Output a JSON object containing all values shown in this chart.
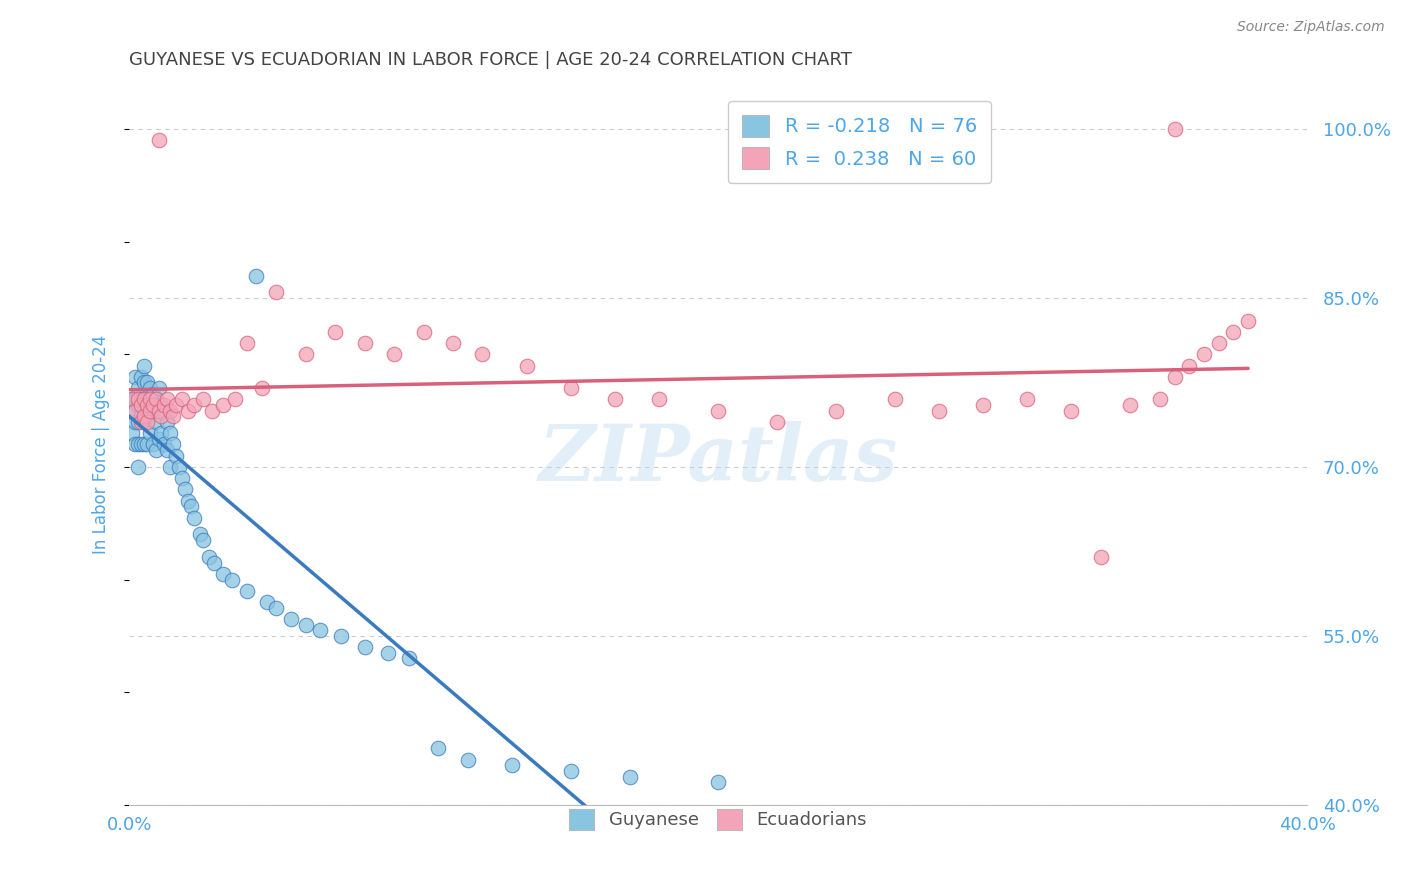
{
  "title": "GUYANESE VS ECUADORIAN IN LABOR FORCE | AGE 20-24 CORRELATION CHART",
  "source": "Source: ZipAtlas.com",
  "ylabel": "In Labor Force | Age 20-24",
  "xlim": [
    0.0,
    0.4
  ],
  "ylim": [
    0.4,
    1.04
  ],
  "xtick_positions": [
    0.0,
    0.05,
    0.1,
    0.15,
    0.2,
    0.25,
    0.3,
    0.35,
    0.4
  ],
  "xtick_labels": [
    "0.0%",
    "",
    "",
    "",
    "",
    "",
    "",
    "",
    "40.0%"
  ],
  "ytick_positions": [
    0.4,
    0.55,
    0.7,
    0.85,
    1.0
  ],
  "ytick_labels": [
    "40.0%",
    "55.0%",
    "70.0%",
    "85.0%",
    "100.0%"
  ],
  "watermark": "ZIPatlas",
  "legend_r_blue": "-0.218",
  "legend_n_blue": "76",
  "legend_r_pink": "0.238",
  "legend_n_pink": "60",
  "blue_color": "#89c4e1",
  "pink_color": "#f4a4b8",
  "blue_line_color": "#3a7bbf",
  "pink_line_color": "#d9607a",
  "title_color": "#444444",
  "axis_label_color": "#4da6e8",
  "grid_color": "#cccccc",
  "blue_scatter_x": [
    0.001,
    0.001,
    0.001,
    0.002,
    0.002,
    0.002,
    0.002,
    0.003,
    0.003,
    0.003,
    0.003,
    0.003,
    0.004,
    0.004,
    0.004,
    0.004,
    0.005,
    0.005,
    0.005,
    0.005,
    0.005,
    0.006,
    0.006,
    0.006,
    0.006,
    0.007,
    0.007,
    0.007,
    0.008,
    0.008,
    0.008,
    0.009,
    0.009,
    0.009,
    0.01,
    0.01,
    0.01,
    0.011,
    0.011,
    0.012,
    0.012,
    0.013,
    0.013,
    0.014,
    0.014,
    0.015,
    0.016,
    0.017,
    0.018,
    0.019,
    0.02,
    0.021,
    0.022,
    0.024,
    0.025,
    0.027,
    0.029,
    0.032,
    0.035,
    0.04,
    0.043,
    0.047,
    0.05,
    0.055,
    0.06,
    0.065,
    0.072,
    0.08,
    0.088,
    0.095,
    0.105,
    0.115,
    0.13,
    0.15,
    0.17,
    0.2
  ],
  "blue_scatter_y": [
    0.76,
    0.75,
    0.73,
    0.78,
    0.76,
    0.74,
    0.72,
    0.77,
    0.755,
    0.74,
    0.72,
    0.7,
    0.78,
    0.76,
    0.745,
    0.72,
    0.79,
    0.775,
    0.76,
    0.74,
    0.72,
    0.775,
    0.76,
    0.745,
    0.72,
    0.77,
    0.755,
    0.73,
    0.765,
    0.75,
    0.72,
    0.76,
    0.74,
    0.715,
    0.77,
    0.75,
    0.725,
    0.755,
    0.73,
    0.75,
    0.72,
    0.74,
    0.715,
    0.73,
    0.7,
    0.72,
    0.71,
    0.7,
    0.69,
    0.68,
    0.67,
    0.665,
    0.655,
    0.64,
    0.635,
    0.62,
    0.615,
    0.605,
    0.6,
    0.59,
    0.87,
    0.58,
    0.575,
    0.565,
    0.56,
    0.555,
    0.55,
    0.54,
    0.535,
    0.53,
    0.45,
    0.44,
    0.435,
    0.43,
    0.425,
    0.42
  ],
  "pink_scatter_x": [
    0.001,
    0.002,
    0.003,
    0.004,
    0.004,
    0.005,
    0.005,
    0.006,
    0.006,
    0.007,
    0.007,
    0.008,
    0.009,
    0.01,
    0.01,
    0.011,
    0.012,
    0.013,
    0.014,
    0.015,
    0.016,
    0.018,
    0.02,
    0.022,
    0.025,
    0.028,
    0.032,
    0.036,
    0.04,
    0.045,
    0.05,
    0.06,
    0.07,
    0.08,
    0.09,
    0.1,
    0.11,
    0.12,
    0.135,
    0.15,
    0.165,
    0.18,
    0.2,
    0.22,
    0.24,
    0.26,
    0.275,
    0.29,
    0.305,
    0.32,
    0.33,
    0.34,
    0.35,
    0.355,
    0.36,
    0.365,
    0.37,
    0.375,
    0.38,
    0.355
  ],
  "pink_scatter_y": [
    0.76,
    0.75,
    0.76,
    0.755,
    0.74,
    0.76,
    0.745,
    0.755,
    0.74,
    0.76,
    0.75,
    0.755,
    0.76,
    0.75,
    0.99,
    0.745,
    0.755,
    0.76,
    0.75,
    0.745,
    0.755,
    0.76,
    0.75,
    0.755,
    0.76,
    0.75,
    0.755,
    0.76,
    0.81,
    0.77,
    0.855,
    0.8,
    0.82,
    0.81,
    0.8,
    0.82,
    0.81,
    0.8,
    0.79,
    0.77,
    0.76,
    0.76,
    0.75,
    0.74,
    0.75,
    0.76,
    0.75,
    0.755,
    0.76,
    0.75,
    0.62,
    0.755,
    0.76,
    0.78,
    0.79,
    0.8,
    0.81,
    0.82,
    0.83,
    1.0
  ]
}
